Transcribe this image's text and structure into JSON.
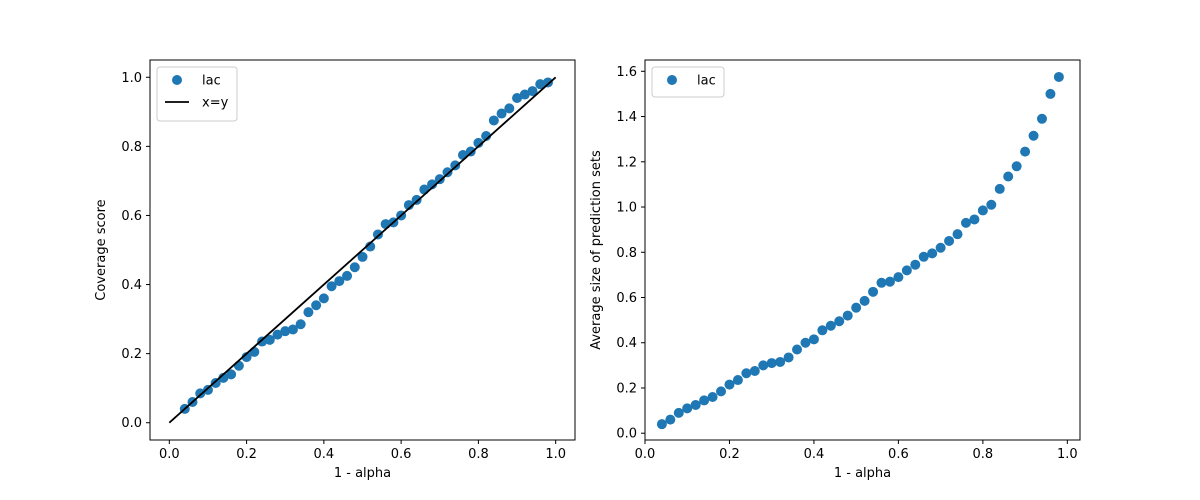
{
  "chart_data": [
    {
      "type": "scatter",
      "xlabel": "1 - alpha",
      "ylabel": "Coverage score",
      "xlim": [
        -0.05,
        1.05
      ],
      "ylim": [
        -0.05,
        1.05
      ],
      "xticks": [
        0.0,
        0.2,
        0.4,
        0.6,
        0.8,
        1.0
      ],
      "yticks": [
        0.0,
        0.2,
        0.4,
        0.6,
        0.8,
        1.0
      ],
      "xtick_labels": [
        "0.0",
        "0.2",
        "0.4",
        "0.6",
        "0.8",
        "1.0"
      ],
      "ytick_labels": [
        "0.0",
        "0.2",
        "0.4",
        "0.6",
        "0.8",
        "1.0"
      ],
      "grid": false,
      "legend": "upper-left",
      "series": [
        {
          "name": "lac",
          "kind": "scatter",
          "color": "#1f77b4",
          "x": [
            0.04,
            0.06,
            0.08,
            0.1,
            0.12,
            0.14,
            0.16,
            0.18,
            0.2,
            0.22,
            0.24,
            0.26,
            0.28,
            0.3,
            0.32,
            0.34,
            0.36,
            0.38,
            0.4,
            0.42,
            0.44,
            0.46,
            0.48,
            0.5,
            0.52,
            0.54,
            0.56,
            0.58,
            0.6,
            0.62,
            0.64,
            0.66,
            0.68,
            0.7,
            0.72,
            0.74,
            0.76,
            0.78,
            0.8,
            0.82,
            0.84,
            0.86,
            0.88,
            0.9,
            0.92,
            0.94,
            0.96,
            0.98
          ],
          "y": [
            0.04,
            0.06,
            0.085,
            0.095,
            0.115,
            0.13,
            0.14,
            0.165,
            0.19,
            0.205,
            0.235,
            0.24,
            0.255,
            0.265,
            0.27,
            0.285,
            0.32,
            0.34,
            0.36,
            0.395,
            0.41,
            0.425,
            0.45,
            0.48,
            0.51,
            0.545,
            0.575,
            0.58,
            0.6,
            0.63,
            0.645,
            0.675,
            0.69,
            0.705,
            0.725,
            0.745,
            0.775,
            0.785,
            0.81,
            0.83,
            0.875,
            0.895,
            0.91,
            0.94,
            0.95,
            0.96,
            0.98,
            0.985
          ]
        },
        {
          "name": "x=y",
          "kind": "line",
          "color": "#000000",
          "x": [
            0.0,
            1.0
          ],
          "y": [
            0.0,
            1.0
          ]
        }
      ]
    },
    {
      "type": "scatter",
      "xlabel": "1 - alpha",
      "ylabel": "Average size of prediction sets",
      "xlim": [
        0.0,
        1.03
      ],
      "ylim": [
        -0.03,
        1.65
      ],
      "xticks": [
        0.0,
        0.2,
        0.4,
        0.6,
        0.8,
        1.0
      ],
      "yticks": [
        0.0,
        0.2,
        0.4,
        0.6,
        0.8,
        1.0,
        1.2,
        1.4,
        1.6
      ],
      "xtick_labels": [
        "0.0",
        "0.2",
        "0.4",
        "0.6",
        "0.8",
        "1.0"
      ],
      "ytick_labels": [
        "0.0",
        "0.2",
        "0.4",
        "0.6",
        "0.8",
        "1.0",
        "1.2",
        "1.4",
        "1.6"
      ],
      "grid": false,
      "legend": "upper-left",
      "series": [
        {
          "name": "lac",
          "kind": "scatter",
          "color": "#1f77b4",
          "x": [
            0.04,
            0.06,
            0.08,
            0.1,
            0.12,
            0.14,
            0.16,
            0.18,
            0.2,
            0.22,
            0.24,
            0.26,
            0.28,
            0.3,
            0.32,
            0.34,
            0.36,
            0.38,
            0.4,
            0.42,
            0.44,
            0.46,
            0.48,
            0.5,
            0.52,
            0.54,
            0.56,
            0.58,
            0.6,
            0.62,
            0.64,
            0.66,
            0.68,
            0.7,
            0.72,
            0.74,
            0.76,
            0.78,
            0.8,
            0.82,
            0.84,
            0.86,
            0.88,
            0.9,
            0.92,
            0.94,
            0.96,
            0.98
          ],
          "y": [
            0.04,
            0.06,
            0.09,
            0.11,
            0.125,
            0.145,
            0.16,
            0.185,
            0.215,
            0.235,
            0.265,
            0.275,
            0.3,
            0.31,
            0.315,
            0.335,
            0.37,
            0.4,
            0.415,
            0.455,
            0.475,
            0.495,
            0.52,
            0.555,
            0.585,
            0.625,
            0.665,
            0.67,
            0.69,
            0.72,
            0.745,
            0.78,
            0.795,
            0.82,
            0.85,
            0.88,
            0.93,
            0.945,
            0.985,
            1.01,
            1.08,
            1.135,
            1.18,
            1.245,
            1.315,
            1.39,
            1.5,
            1.575
          ]
        }
      ]
    }
  ]
}
